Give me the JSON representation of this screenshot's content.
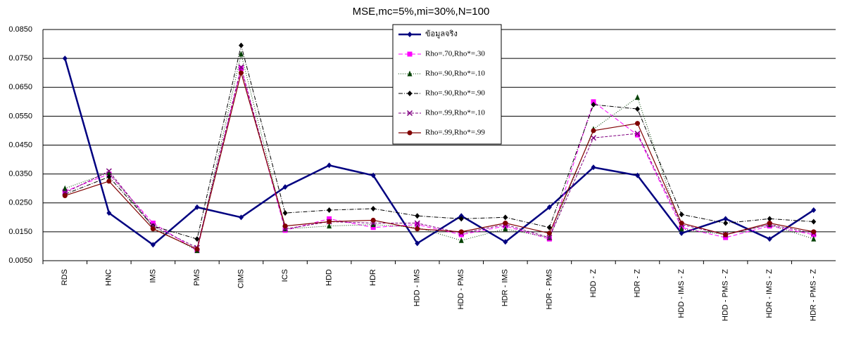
{
  "chart_data": {
    "type": "line",
    "title": "MSE,mc=5%,mi=30%,N=100",
    "categories": [
      "RDS",
      "HNC",
      "IMS",
      "PMS",
      "CIMS",
      "ICS",
      "HDD",
      "HDR",
      "HDD - IMS",
      "HDD - PMS",
      "HDR - IMS",
      "HDR - PMS",
      "HDD - Z",
      "HDR - Z",
      "HDD - IMS - Z",
      "HDD - PMS - Z",
      "HDR - IMS - Z",
      "HDR - PMS - Z"
    ],
    "series": [
      {
        "name": "ข้อมูลจริง",
        "color": "#000080",
        "dash": "none",
        "width": 2.5,
        "marker": "diamond",
        "values": [
          0.075,
          0.0215,
          0.0105,
          0.0235,
          0.02,
          0.0305,
          0.038,
          0.0345,
          0.011,
          0.0205,
          0.0115,
          0.0235,
          0.0373,
          0.0345,
          0.0145,
          0.0195,
          0.0125,
          0.0225
        ]
      },
      {
        "name": "Rho=.70,Rho*=.30",
        "color": "#ff00ff",
        "dash": "6,3",
        "width": 1,
        "marker": "square",
        "values": [
          0.029,
          0.035,
          0.018,
          0.0085,
          0.0715,
          0.0155,
          0.0195,
          0.0165,
          0.0175,
          0.014,
          0.017,
          0.0125,
          0.06,
          0.0485,
          0.0165,
          0.013,
          0.017,
          0.014
        ]
      },
      {
        "name": "Rho=.90,Rho*=.10",
        "color": "#004000",
        "dash": "1,2",
        "width": 1,
        "marker": "triangle",
        "values": [
          0.03,
          0.0355,
          0.0165,
          0.0085,
          0.0765,
          0.016,
          0.017,
          0.0175,
          0.0165,
          0.012,
          0.016,
          0.013,
          0.0505,
          0.0615,
          0.016,
          0.014,
          0.0175,
          0.0125
        ]
      },
      {
        "name": "Rho=.90,Rho*=.90",
        "color": "#000000",
        "dash": "6,2,1,2",
        "width": 1,
        "marker": "diamond",
        "values": [
          0.028,
          0.034,
          0.017,
          0.0125,
          0.0795,
          0.0215,
          0.0225,
          0.023,
          0.0205,
          0.0195,
          0.02,
          0.0165,
          0.059,
          0.0575,
          0.021,
          0.018,
          0.0195,
          0.0185
        ]
      },
      {
        "name": "Rho=.99,Rho*=.10",
        "color": "#800080",
        "dash": "4,2",
        "width": 1,
        "marker": "x",
        "values": [
          0.0285,
          0.036,
          0.017,
          0.0095,
          0.072,
          0.016,
          0.0185,
          0.018,
          0.018,
          0.0145,
          0.0175,
          0.013,
          0.0475,
          0.049,
          0.0175,
          0.014,
          0.0175,
          0.0145
        ]
      },
      {
        "name": "Rho=.99,Rho*=.99",
        "color": "#800000",
        "dash": "none",
        "width": 1.2,
        "marker": "circle",
        "values": [
          0.0275,
          0.0325,
          0.016,
          0.009,
          0.07,
          0.017,
          0.0185,
          0.019,
          0.016,
          0.015,
          0.018,
          0.0145,
          0.05,
          0.0525,
          0.018,
          0.014,
          0.018,
          0.015
        ]
      }
    ],
    "ylim": [
      0.005,
      0.085
    ],
    "yticks": [
      {
        "value": 0.005,
        "label": "0.0050"
      },
      {
        "value": 0.015,
        "label": "0.0150"
      },
      {
        "value": 0.025,
        "label": "0.0250"
      },
      {
        "value": 0.035,
        "label": "0.0350"
      },
      {
        "value": 0.045,
        "label": "0.0450"
      },
      {
        "value": 0.055,
        "label": "0.0550"
      },
      {
        "value": 0.065,
        "label": "0.0650"
      },
      {
        "value": 0.075,
        "label": "0.0750"
      },
      {
        "value": 0.085,
        "label": "0.0850"
      }
    ],
    "grid": true
  }
}
